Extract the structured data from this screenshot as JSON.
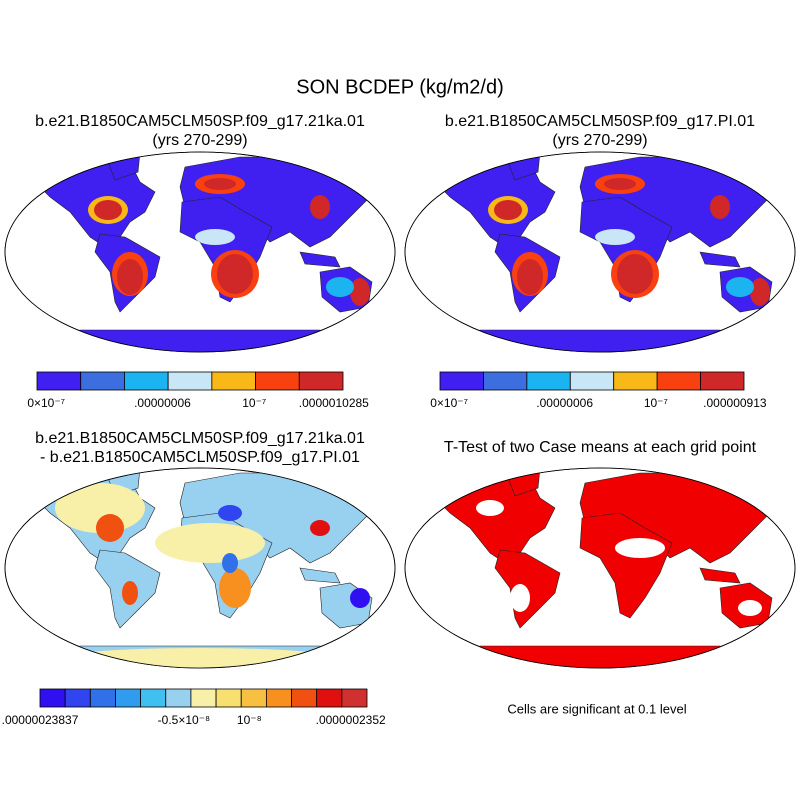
{
  "title": "SON BCDEP (kg/m2/d)",
  "panels": [
    {
      "title": "b.e21.B1850CAM5CLM50SP.f09_g17.21ka.01",
      "subtitle": "(yrs 270-299)",
      "colorbar": {
        "colors": [
          "#4020f0",
          "#3c6ee0",
          "#1cb4f0",
          "#c8e6f6",
          "#f8b818",
          "#f84010",
          "#d02828"
        ],
        "labels": [
          "0×10⁻⁷",
          ".00000006",
          "10⁻⁷",
          ".0000010285"
        ]
      }
    },
    {
      "title": "b.e21.B1850CAM5CLM50SP.f09_g17.PI.01",
      "subtitle": "(yrs 270-299)",
      "colorbar": {
        "colors": [
          "#4020f0",
          "#3c6ee0",
          "#1cb4f0",
          "#c8e6f6",
          "#f8b818",
          "#f84010",
          "#d02828"
        ],
        "labels": [
          "0×10⁻⁷",
          ".00000006",
          "10⁻⁷",
          ".000000913"
        ]
      }
    },
    {
      "title": "b.e21.B1850CAM5CLM50SP.f09_g17.21ka.01",
      "subtitle": "- b.e21.B1850CAM5CLM50SP.f09_g17.PI.01",
      "colorbar": {
        "colors": [
          "#3010f0",
          "#3044f0",
          "#3070e8",
          "#309cf0",
          "#40c0f0",
          "#98d0f0",
          "#f8f0a8",
          "#f8e070",
          "#f8c040",
          "#f89020",
          "#f05010",
          "#e01010",
          "#d03030"
        ],
        "labels": [
          ".00000023837",
          "-0.5×10⁻⁸",
          "10⁻⁸",
          ".0000002352"
        ]
      }
    },
    {
      "title": "T-Test of two Case means at each grid point",
      "note": "Cells are significant at 0.1 level"
    }
  ]
}
